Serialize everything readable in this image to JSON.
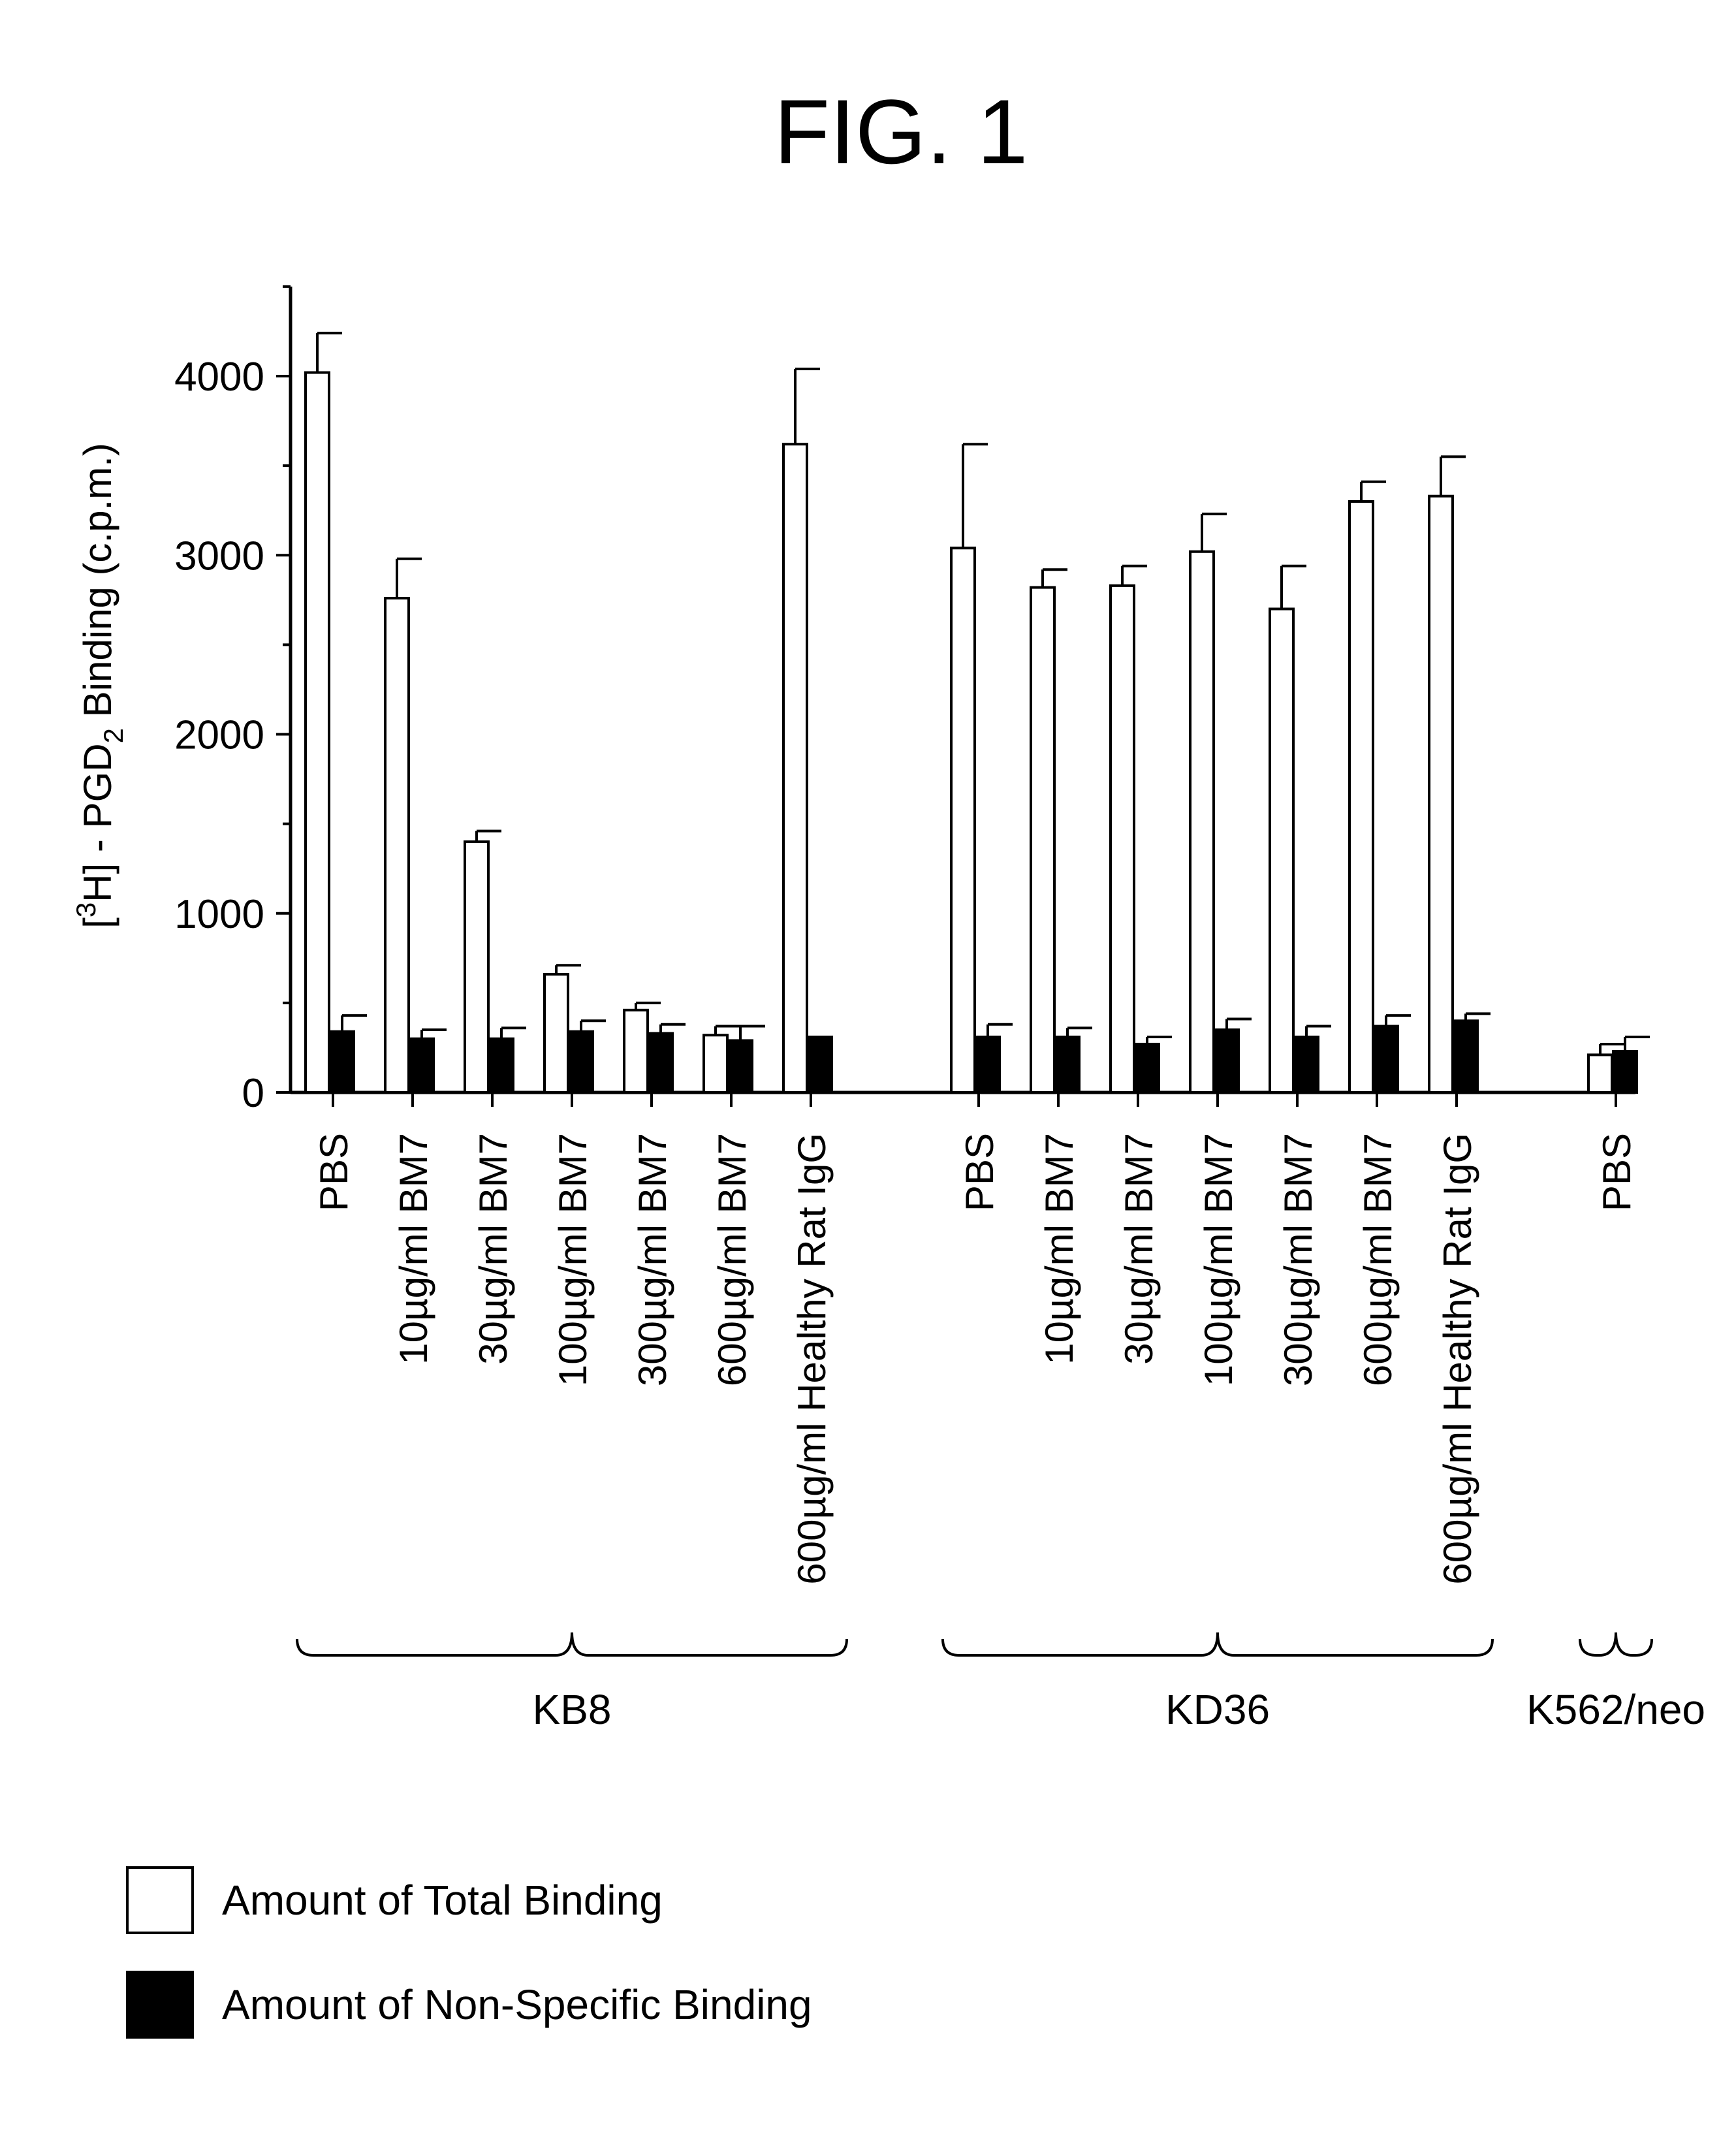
{
  "figure_label": "FIG. 1",
  "chart_data": {
    "type": "bar",
    "ylabel_parts": {
      "bracket_open": "[",
      "superscript": "3",
      "mid": "H] - PGD",
      "subscript": "2",
      "tail": " Binding (c.p.m.)"
    },
    "ylim": [
      0,
      4500
    ],
    "yticks": [
      0,
      1000,
      2000,
      3000,
      4000
    ],
    "grid": false,
    "legend_position": "bottom-left",
    "categories": [
      "PBS",
      "10µg/ml BM7",
      "30µg/ml BM7",
      "100µg/ml BM7",
      "300µg/ml BM7",
      "600µg/ml BM7",
      "600µg/ml Healthy Rat IgG",
      "PBS",
      "10µg/ml BM7",
      "30µg/ml BM7",
      "100µg/ml BM7",
      "300µg/ml BM7",
      "600µg/ml BM7",
      "600µg/ml Healthy Rat IgG",
      "PBS"
    ],
    "groups": [
      {
        "label": "KB8",
        "start": 0,
        "end": 6
      },
      {
        "label": "KD36",
        "start": 7,
        "end": 13
      },
      {
        "label": "K562/neo",
        "start": 14,
        "end": 14
      }
    ],
    "series": [
      {
        "name": "Amount of Total Binding",
        "color": "#ffffff",
        "values": [
          4020,
          2760,
          1400,
          660,
          460,
          320,
          3620,
          3040,
          2820,
          2830,
          3020,
          2700,
          3300,
          3330,
          210
        ],
        "errors": [
          220,
          220,
          60,
          50,
          40,
          50,
          420,
          580,
          100,
          110,
          210,
          240,
          110,
          220,
          60
        ]
      },
      {
        "name": "Amount of Non-Specific Binding",
        "color": "#000000",
        "values": [
          340,
          300,
          300,
          340,
          330,
          290,
          310,
          310,
          310,
          270,
          350,
          310,
          370,
          400,
          230
        ],
        "errors": [
          90,
          50,
          60,
          60,
          50,
          80,
          0,
          70,
          50,
          40,
          60,
          60,
          60,
          40,
          80
        ]
      }
    ]
  }
}
